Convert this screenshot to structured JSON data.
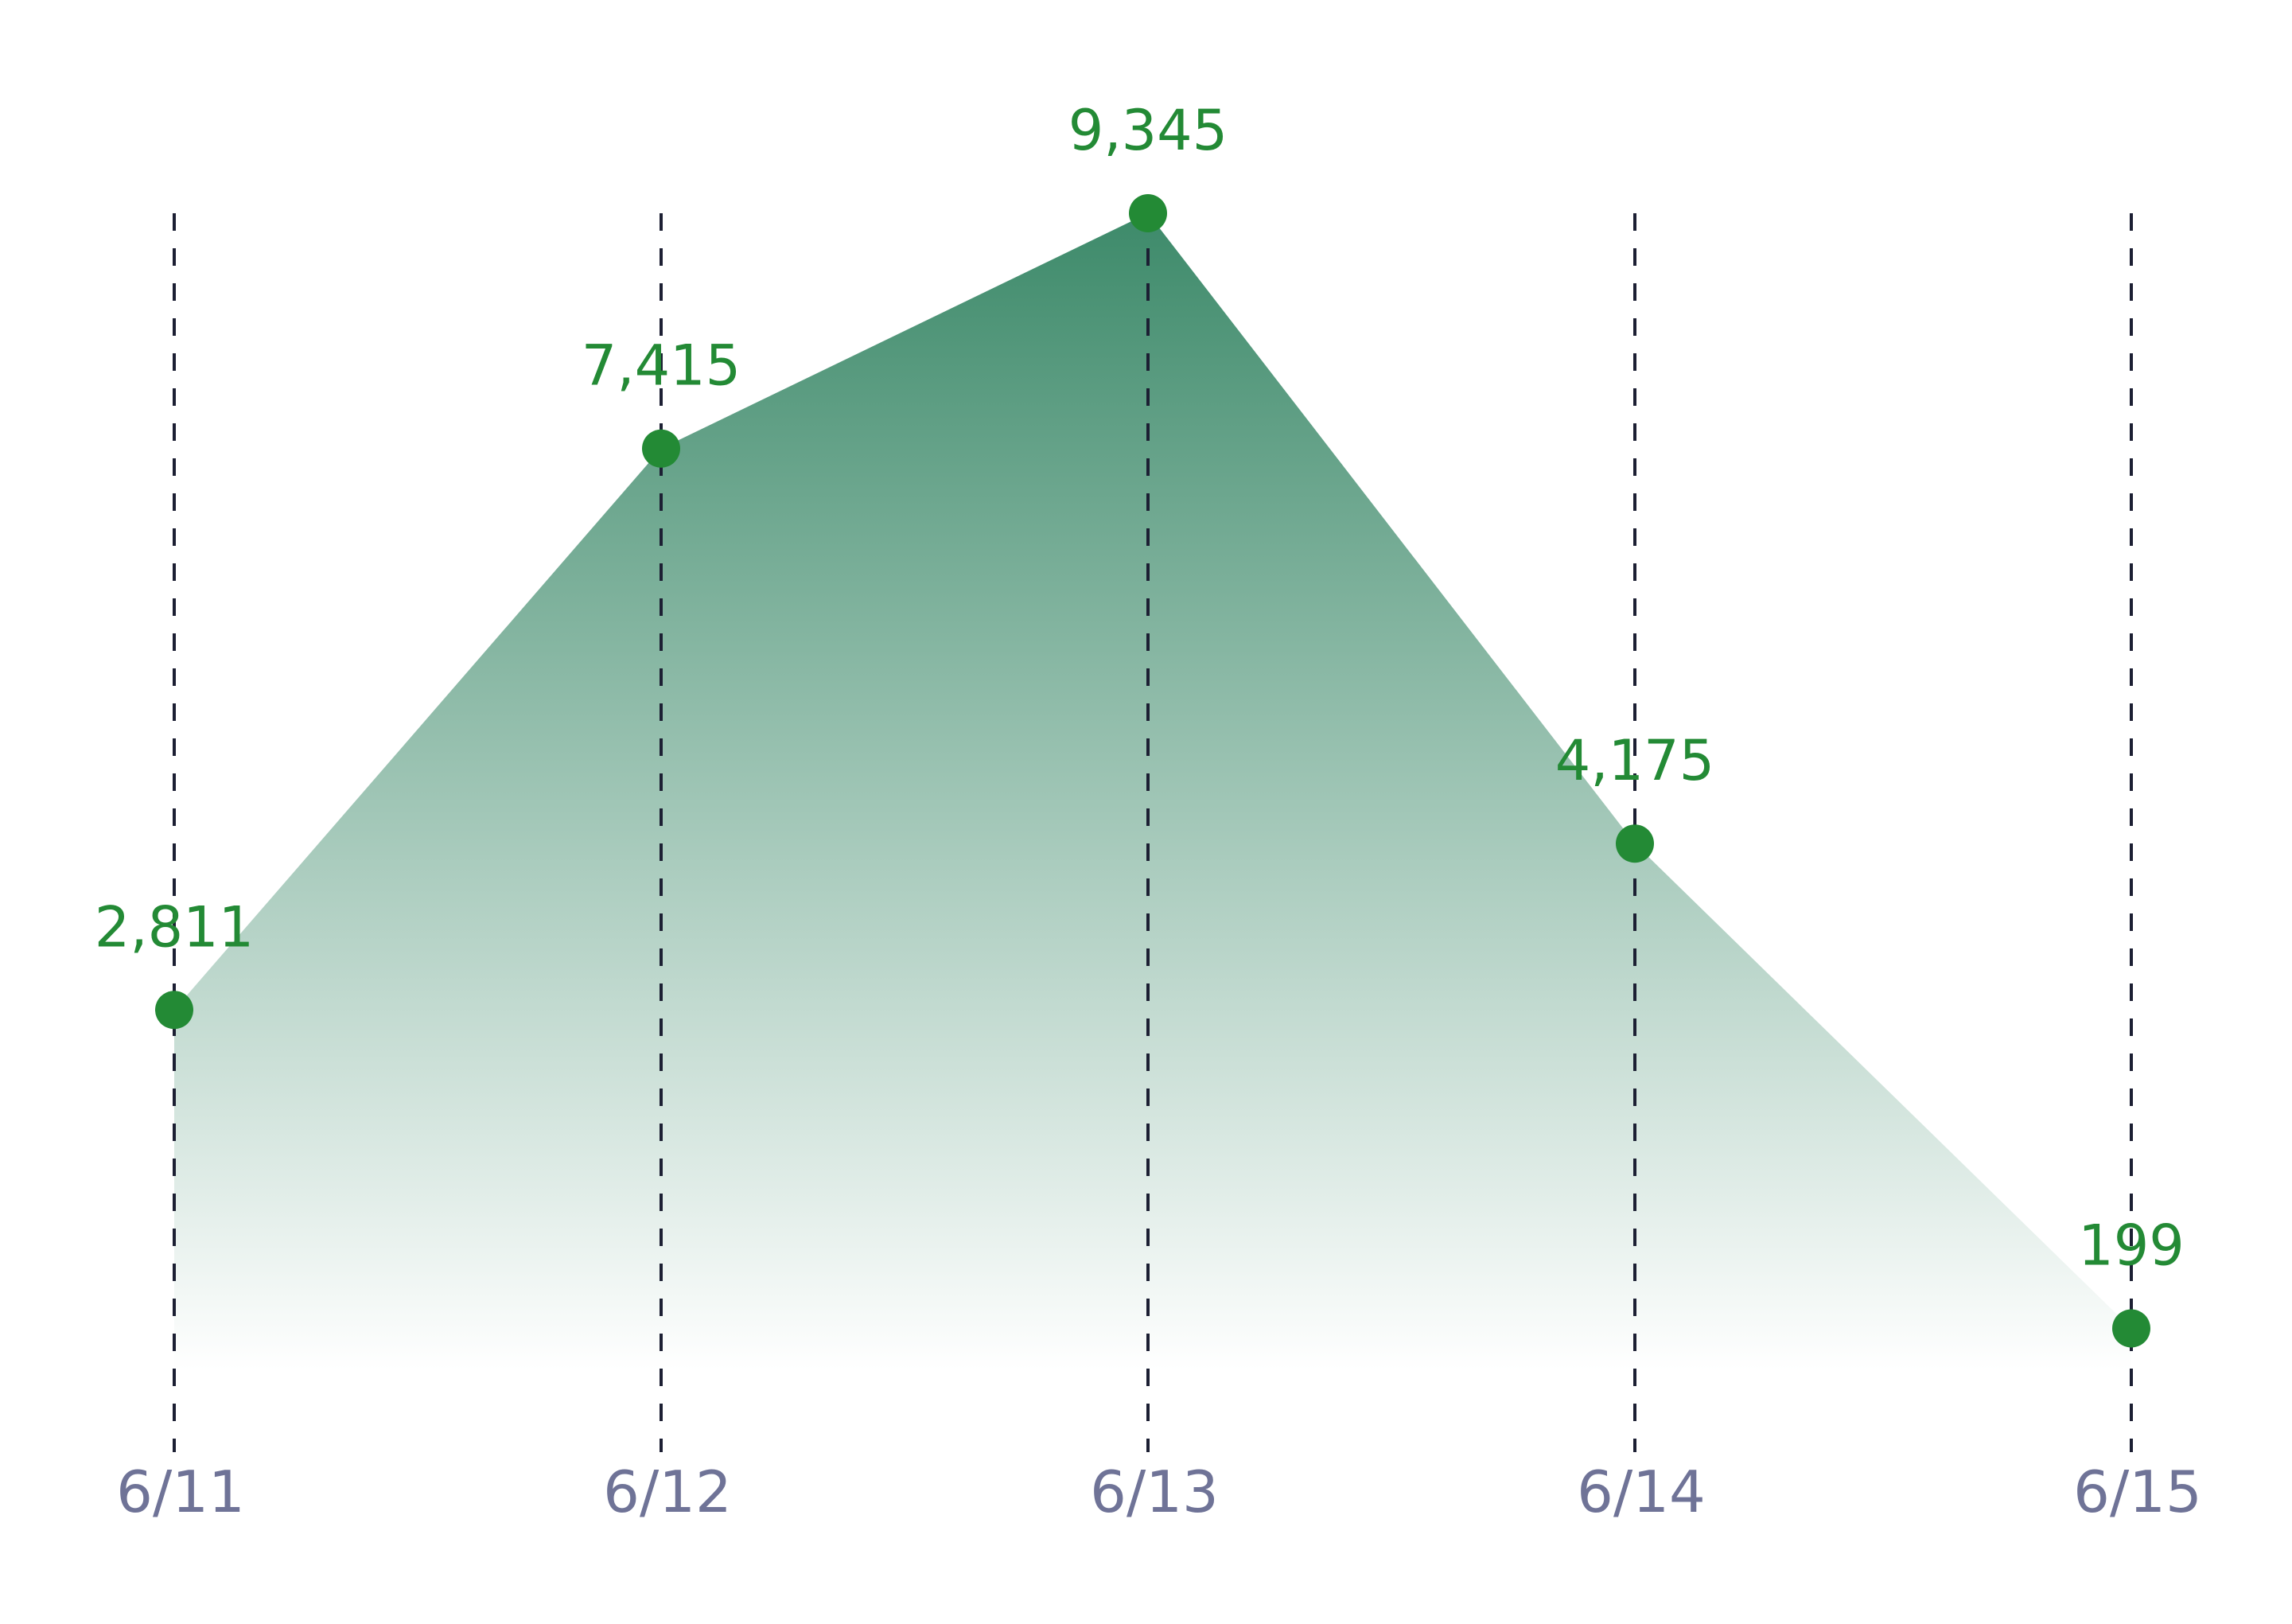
{
  "chart_data": {
    "type": "area",
    "categories": [
      "6/11",
      "6/12",
      "6/13",
      "6/14",
      "6/15"
    ],
    "series": [
      {
        "values": [
          2811,
          7415,
          9345,
          4175,
          199
        ],
        "labels": [
          "2,811",
          "7,415",
          "9,345",
          "4,175",
          "199"
        ]
      }
    ],
    "title": "",
    "xlabel": "",
    "ylabel": "",
    "ylim": [
      0,
      9345
    ],
    "grid": "vertical dashed",
    "legend": "none",
    "colors": {
      "series": "#238a35",
      "area_top": "#3d8a6a",
      "area_bottom": "#ffffff",
      "gridline": "#1c1f33",
      "tick_label": "#6f7397"
    }
  }
}
